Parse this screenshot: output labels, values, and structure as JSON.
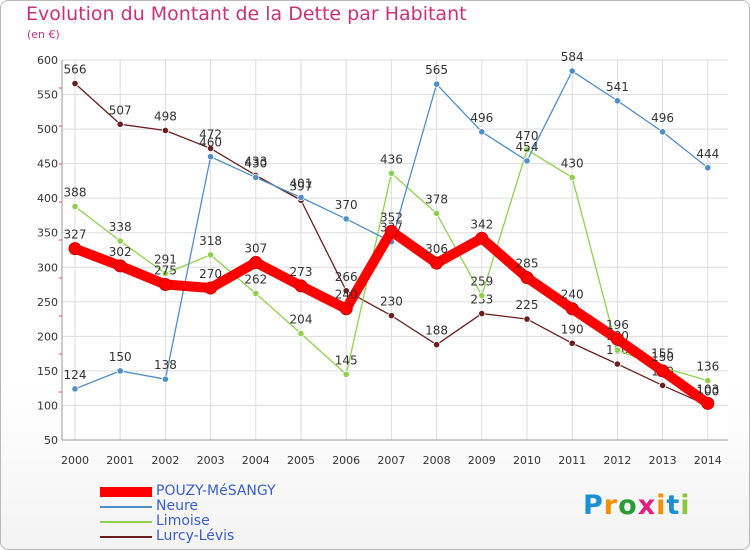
{
  "chart_data": {
    "type": "line",
    "title": "Evolution du Montant de la Dette par Habitant",
    "subtitle": "(en €)",
    "xlabel": "",
    "ylabel": "",
    "ylim": [
      50,
      600
    ],
    "yticks": [
      50,
      100,
      150,
      200,
      250,
      300,
      350,
      400,
      450,
      500,
      550,
      600
    ],
    "categories": [
      "2000",
      "2001",
      "2002",
      "2003",
      "2004",
      "2005",
      "2006",
      "2007",
      "2008",
      "2009",
      "2010",
      "2011",
      "2012",
      "2013",
      "2014"
    ],
    "grid": true,
    "legend": "bottom-left",
    "series": [
      {
        "name": "POUZY-MéSANGY",
        "color": "#ff0000",
        "values": [
          327,
          302,
          275,
          270,
          307,
          273,
          240,
          352,
          306,
          342,
          285,
          240,
          196,
          150,
          103
        ]
      },
      {
        "name": "Neure",
        "color": "#4f8fc9",
        "values": [
          124,
          150,
          138,
          460,
          430,
          401,
          370,
          337,
          565,
          496,
          454,
          584,
          541,
          496,
          444
        ]
      },
      {
        "name": "Limoise",
        "color": "#8fd14f",
        "values": [
          388,
          338,
          291,
          318,
          262,
          204,
          145,
          436,
          378,
          259,
          470,
          430,
          180,
          155,
          136
        ]
      },
      {
        "name": "Lurcy-Lévis",
        "color": "#6b1e1e",
        "values": [
          566,
          507,
          498,
          472,
          433,
          397,
          266,
          230,
          188,
          233,
          225,
          190,
          160,
          129,
          100
        ]
      }
    ]
  },
  "logo": {
    "letters": [
      "P",
      "r",
      "o",
      "x",
      "i",
      "t",
      "i"
    ],
    "colors": [
      "#1a8fd1",
      "#f39200",
      "#2a9d3a",
      "#e0207a",
      "#f39200",
      "#1a8fd1",
      "#8cc63f"
    ]
  }
}
